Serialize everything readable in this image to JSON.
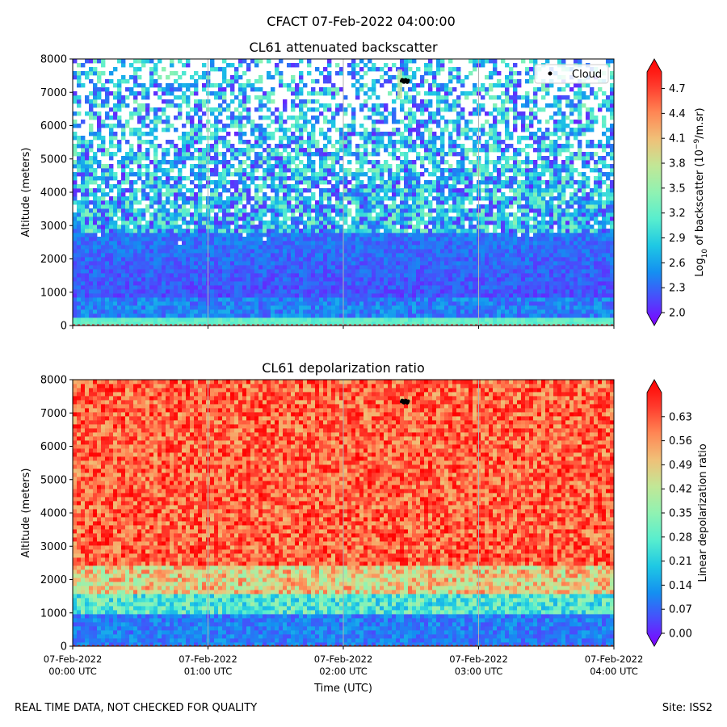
{
  "suptitle": "CFACT 07-Feb-2022 04:00:00",
  "footer": {
    "left": "REAL TIME DATA, NOT CHECKED FOR QUALITY",
    "right": "Site: ISS2"
  },
  "colors": {
    "rainbow": [
      "#8000ff",
      "#4b4afc",
      "#148ff1",
      "#1ec8e4",
      "#58eece",
      "#90f2b2",
      "#c2e796",
      "#f0c078",
      "#ff8654",
      "#ff3a2c",
      "#ff0000"
    ],
    "cloud_marker": "#000000",
    "gridline": "#b0b0b0",
    "reference_line": "#d62728"
  },
  "chart_data": [
    {
      "type": "heatmap",
      "title": "CL61 attenuated backscatter",
      "ylabel": "Altitude (meters)",
      "ylim": [
        0,
        8000
      ],
      "yticks": [
        0,
        1000,
        2000,
        3000,
        4000,
        5000,
        6000,
        7000,
        8000
      ],
      "x_range_hours": [
        0,
        4
      ],
      "xticks_hours": [
        0,
        1,
        2,
        3,
        4
      ],
      "colorbar": {
        "label_prefix": "Log",
        "label_sub": "10",
        "label_mid": " of backscatter (10",
        "label_sup": "−9",
        "label_suffix": "/m.sr)",
        "range": [
          2.0,
          4.9
        ],
        "ticks": [
          "2.0",
          "2.3",
          "2.6",
          "2.9",
          "3.2",
          "3.5",
          "3.8",
          "4.1",
          "4.4",
          "4.7"
        ]
      },
      "legend": {
        "label": "Cloud",
        "position": "upper right"
      },
      "cloud": {
        "time_hours": [
          2.43,
          2.48
        ],
        "altitude_m": [
          7300,
          7380
        ]
      }
    },
    {
      "type": "heatmap",
      "title": "CL61 depolarization ratio",
      "ylabel": "Altitude (meters)",
      "xlabel": "Time (UTC)",
      "ylim": [
        0,
        8000
      ],
      "yticks": [
        0,
        1000,
        2000,
        3000,
        4000,
        5000,
        6000,
        7000,
        8000
      ],
      "x_range_hours": [
        0,
        4
      ],
      "xticks_hours": [
        0,
        1,
        2,
        3,
        4
      ],
      "xticklabels": [
        [
          "07-Feb-2022",
          "00:00 UTC"
        ],
        [
          "07-Feb-2022",
          "01:00 UTC"
        ],
        [
          "07-Feb-2022",
          "02:00 UTC"
        ],
        [
          "07-Feb-2022",
          "03:00 UTC"
        ],
        [
          "07-Feb-2022",
          "04:00 UTC"
        ]
      ],
      "colorbar": {
        "label": "Linear depolarization ratio",
        "range": [
          0.0,
          0.7
        ],
        "ticks": [
          "0.00",
          "0.07",
          "0.14",
          "0.21",
          "0.28",
          "0.35",
          "0.42",
          "0.49",
          "0.56",
          "0.63"
        ]
      },
      "cloud": {
        "time_hours": [
          2.43,
          2.48
        ],
        "altitude_m": [
          7300,
          7380
        ]
      }
    }
  ]
}
